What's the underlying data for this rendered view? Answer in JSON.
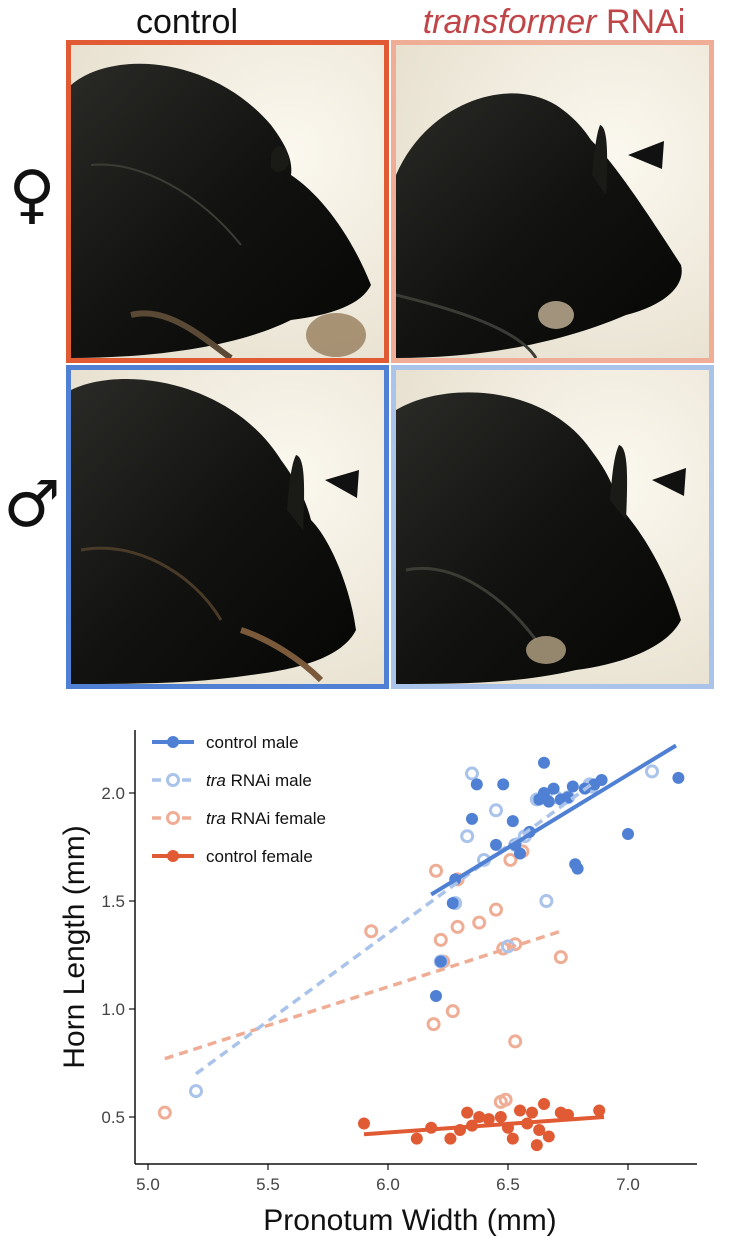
{
  "figure": {
    "columns": {
      "control": "control",
      "tra_italic": "transformer",
      "tra_plain": " RNAi"
    },
    "rows": {
      "female_symbol": "♀",
      "male_symbol": "♂"
    },
    "colors": {
      "control_female": "#e05a34",
      "tra_female": "#f0ad96",
      "control_male": "#4f80d3",
      "tra_male": "#a9c3ea",
      "tra_title": "#c04548"
    },
    "panels": [
      {
        "sex": "female",
        "treatment": "control",
        "arrowhead": false
      },
      {
        "sex": "female",
        "treatment": "tra RNAi",
        "arrowhead": true
      },
      {
        "sex": "male",
        "treatment": "control",
        "arrowhead": true
      },
      {
        "sex": "male",
        "treatment": "tra RNAi",
        "arrowhead": true
      }
    ]
  },
  "chart_data": {
    "type": "scatter",
    "xlabel": "Pronotum Width (mm)",
    "ylabel": "Horn Length (mm)",
    "xlim": [
      5.0,
      7.3
    ],
    "ylim": [
      0.3,
      2.35
    ],
    "xticks": [
      "5.0",
      "5.5",
      "6.0",
      "6.5",
      "7.0"
    ],
    "xtick_values": [
      5.0,
      5.5,
      6.0,
      6.5,
      7.0
    ],
    "yticks": [
      "0.5",
      "1.0",
      "1.5",
      "2.0"
    ],
    "ytick_values": [
      0.5,
      1.0,
      1.5,
      2.0
    ],
    "grid": false,
    "legend_position": "top-left",
    "series": [
      {
        "name": "control male",
        "name_italic": "",
        "name_plain": "control male",
        "color": "#4f80d3",
        "marker": "filled",
        "line": "solid",
        "fit": [
          [
            6.18,
            1.53
          ],
          [
            7.2,
            2.22
          ]
        ],
        "points": [
          [
            6.2,
            1.06
          ],
          [
            6.22,
            1.22
          ],
          [
            6.27,
            1.49
          ],
          [
            6.28,
            1.6
          ],
          [
            6.35,
            1.88
          ],
          [
            6.37,
            2.04
          ],
          [
            6.45,
            1.76
          ],
          [
            6.48,
            2.04
          ],
          [
            6.52,
            1.87
          ],
          [
            6.53,
            1.76
          ],
          [
            6.55,
            1.72
          ],
          [
            6.59,
            1.82
          ],
          [
            6.63,
            1.97
          ],
          [
            6.65,
            2.0
          ],
          [
            6.65,
            2.14
          ],
          [
            6.67,
            1.96
          ],
          [
            6.69,
            2.02
          ],
          [
            6.72,
            1.97
          ],
          [
            6.75,
            1.98
          ],
          [
            6.77,
            2.03
          ],
          [
            6.78,
            1.67
          ],
          [
            6.79,
            1.65
          ],
          [
            6.82,
            2.02
          ],
          [
            6.86,
            2.04
          ],
          [
            6.89,
            2.06
          ],
          [
            7.0,
            1.81
          ],
          [
            7.21,
            2.07
          ]
        ]
      },
      {
        "name": "tra RNAi male",
        "name_italic": "tra",
        "name_plain": " RNAi male",
        "color": "#a9c3ea",
        "marker": "open",
        "line": "dashed",
        "fit": [
          [
            5.2,
            0.7
          ],
          [
            6.86,
            2.05
          ]
        ],
        "points": [
          [
            5.2,
            0.62
          ],
          [
            6.22,
            1.22
          ],
          [
            6.28,
            1.49
          ],
          [
            6.33,
            1.8
          ],
          [
            6.35,
            2.09
          ],
          [
            6.4,
            1.69
          ],
          [
            6.45,
            1.92
          ],
          [
            6.5,
            1.29
          ],
          [
            6.53,
            1.76
          ],
          [
            6.57,
            1.8
          ],
          [
            6.62,
            1.97
          ],
          [
            6.66,
            1.5
          ],
          [
            6.7,
            1.98
          ],
          [
            6.75,
            1.98
          ],
          [
            6.84,
            2.04
          ],
          [
            6.85,
            2.03
          ],
          [
            7.1,
            2.1
          ]
        ]
      },
      {
        "name": "tra RNAi female",
        "name_italic": "tra",
        "name_plain": " RNAi female",
        "color": "#f0ad96",
        "marker": "open",
        "line": "dashed",
        "fit": [
          [
            5.07,
            0.77
          ],
          [
            6.72,
            1.36
          ]
        ],
        "points": [
          [
            5.07,
            0.52
          ],
          [
            5.93,
            1.36
          ],
          [
            6.19,
            0.93
          ],
          [
            6.2,
            1.64
          ],
          [
            6.22,
            1.32
          ],
          [
            6.23,
            1.22
          ],
          [
            6.27,
            0.99
          ],
          [
            6.29,
            1.6
          ],
          [
            6.29,
            1.38
          ],
          [
            6.38,
            1.4
          ],
          [
            6.45,
            1.46
          ],
          [
            6.47,
            0.57
          ],
          [
            6.48,
            1.28
          ],
          [
            6.49,
            0.58
          ],
          [
            6.51,
            1.69
          ],
          [
            6.53,
            0.85
          ],
          [
            6.53,
            1.3
          ],
          [
            6.56,
            1.73
          ],
          [
            6.72,
            1.24
          ]
        ]
      },
      {
        "name": "control female",
        "name_italic": "",
        "name_plain": "control female",
        "color": "#e05a34",
        "marker": "filled",
        "line": "solid",
        "fit": [
          [
            5.9,
            0.42
          ],
          [
            6.9,
            0.5
          ]
        ],
        "points": [
          [
            5.9,
            0.47
          ],
          [
            6.12,
            0.4
          ],
          [
            6.18,
            0.45
          ],
          [
            6.26,
            0.4
          ],
          [
            6.3,
            0.44
          ],
          [
            6.33,
            0.52
          ],
          [
            6.35,
            0.46
          ],
          [
            6.38,
            0.5
          ],
          [
            6.42,
            0.49
          ],
          [
            6.47,
            0.5
          ],
          [
            6.5,
            0.45
          ],
          [
            6.52,
            0.4
          ],
          [
            6.55,
            0.53
          ],
          [
            6.58,
            0.47
          ],
          [
            6.6,
            0.52
          ],
          [
            6.62,
            0.37
          ],
          [
            6.63,
            0.44
          ],
          [
            6.65,
            0.56
          ],
          [
            6.67,
            0.41
          ],
          [
            6.72,
            0.52
          ],
          [
            6.75,
            0.51
          ],
          [
            6.88,
            0.53
          ]
        ]
      }
    ]
  }
}
